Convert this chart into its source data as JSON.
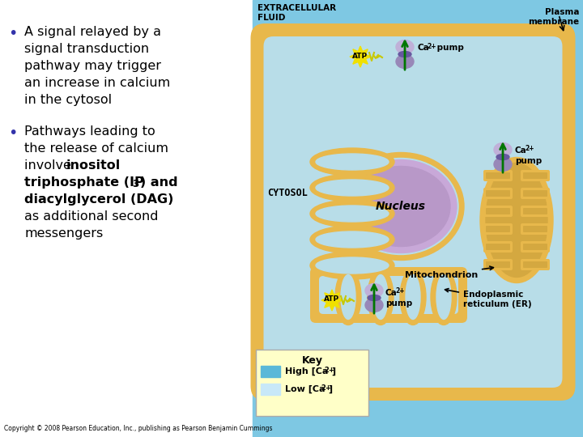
{
  "bg_color": "#ffffff",
  "copyright": "Copyright © 2008 Pearson Education, Inc., publishing as Pearson Benjamin Cummings",
  "bullet1_lines": [
    "A signal relayed by a",
    "signal transduction",
    "pathway may trigger",
    "an increase in calcium",
    "in the cytosol"
  ],
  "bullet2_pre": [
    "Pathways leading to",
    "the release of calcium",
    "involve "
  ],
  "bullet2_bold1": "inositol",
  "bullet2_bold2": "triphosphate (IP",
  "bullet2_sub": "3",
  "bullet2_bold3": ") and",
  "bullet2_bold4": "diacylglycerol (DAG)",
  "bullet2_post": [
    "as additional second",
    "messengers"
  ],
  "extracell_label": "EXTRACELLULAR\nFLUID",
  "plasma_label": "Plasma\nmembrane",
  "cytosol_label": "CYTOSOL",
  "nucleus_label": "Nucleus",
  "mito_label": "Mitochondrion",
  "er_label": "Endoplasmic\nreticulum (ER)",
  "ca_pump1": "Ca2+ pump",
  "ca_pump2": "Ca2+\npump",
  "ca_pump3": "Ca2+\npump",
  "atp_label": "ATP",
  "key_label": "Key",
  "high_ca": "High [Ca2+]",
  "low_ca": "Low [Ca2+]",
  "extracell_bg": "#7ec8e3",
  "cell_border_color": "#e8b84b",
  "cytoplasm_color": "#b8dde8",
  "er_color": "#e8b84b",
  "nucleus_border_color": "#c8a8d8",
  "nucleus_fill_color": "#b898c8",
  "mito_border_color": "#e8b84b",
  "mito_fill_color": "#d4a840",
  "pump_top_color": "#c0b0d8",
  "pump_bot_color": "#9888b8",
  "pump_mid_color": "#6858a0",
  "arrow_color": "#007700",
  "atp_star_color": "#f0e000",
  "atp_text_color": "#000000",
  "key_bg_color": "#ffffc8",
  "high_ca_color": "#5ab8d8",
  "low_ca_color": "#c8e8f8",
  "text_color": "#000000",
  "bullet_color": "#3333aa"
}
